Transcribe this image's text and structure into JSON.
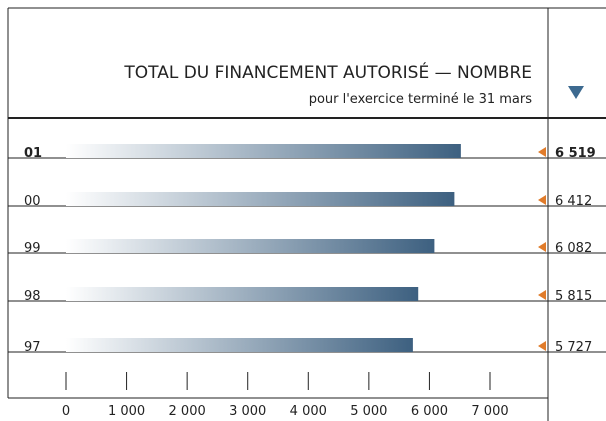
{
  "chart_data": {
    "type": "bar",
    "orientation": "horizontal",
    "title": "TOTAL DU FINANCEMENT AUTORISÉ — NOMBRE",
    "subtitle": "pour l'exercice terminé le 31 mars",
    "categories": [
      "01",
      "00",
      "99",
      "98",
      "97"
    ],
    "values": [
      6519,
      6412,
      6082,
      5815,
      5727
    ],
    "value_labels": [
      "6 519",
      "6 412",
      "6 082",
      "5 815",
      "5 727"
    ],
    "color": "#3d6080",
    "xlim": [
      0,
      7000
    ],
    "xticks": [
      0,
      {
        "value": 1000,
        "label": "1 000"
      },
      {
        "value": 2000,
        "label": "2 000"
      },
      {
        "value": 3000,
        "label": "3 000"
      },
      {
        "value": 4000,
        "label": "4 000"
      },
      {
        "value": 5000,
        "label": "5 000"
      },
      {
        "value": 6000,
        "label": "6 000"
      },
      {
        "value": 7000,
        "label": "7 000"
      }
    ]
  }
}
